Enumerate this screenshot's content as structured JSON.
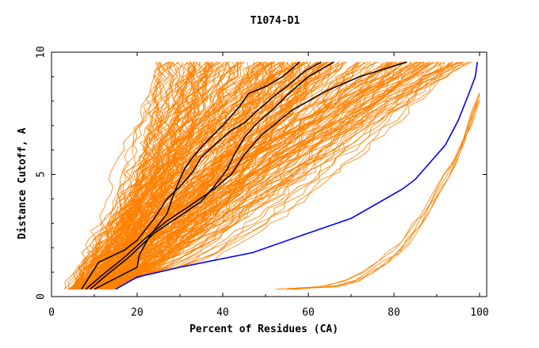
{
  "chart_data": {
    "type": "line",
    "title": "T1074-D1",
    "xlabel": "Percent of Residues (CA)",
    "ylabel": "Distance Cutoff, A",
    "xlim": [
      0,
      100
    ],
    "ylim": [
      0,
      10
    ],
    "xticks": [
      0,
      20,
      40,
      60,
      80,
      100
    ],
    "yticks": [
      0,
      5,
      10
    ],
    "grid": false,
    "legend": "none",
    "colors": {
      "orange": "#ff8000",
      "blue": "#0000ff",
      "black": "#000000"
    },
    "highlight_series": {
      "blue": [
        [
          15,
          0.3
        ],
        [
          20,
          0.8
        ],
        [
          30,
          1.2
        ],
        [
          47,
          1.8
        ],
        [
          60,
          2.6
        ],
        [
          70,
          3.2
        ],
        [
          77,
          3.9
        ],
        [
          82,
          4.4
        ],
        [
          85,
          4.8
        ],
        [
          88,
          5.4
        ],
        [
          92,
          6.2
        ],
        [
          95,
          7.2
        ],
        [
          97.5,
          8.3
        ],
        [
          99,
          9.0
        ],
        [
          99.5,
          9.6
        ]
      ],
      "black": [
        [
          [
            8,
            0.3
          ],
          [
            12,
            0.9
          ],
          [
            17,
            1.6
          ],
          [
            22,
            2.4
          ],
          [
            27,
            3.1
          ],
          [
            33,
            3.8
          ],
          [
            38,
            4.4
          ],
          [
            42,
            5.0
          ],
          [
            45,
            5.8
          ],
          [
            49,
            6.6
          ],
          [
            56,
            7.6
          ],
          [
            64,
            8.4
          ],
          [
            72,
            9.0
          ],
          [
            83,
            9.6
          ]
        ],
        [
          [
            7,
            0.3
          ],
          [
            11,
            1.4
          ],
          [
            17,
            1.9
          ],
          [
            20,
            2.3
          ],
          [
            24,
            3.2
          ],
          [
            27,
            4.0
          ],
          [
            30,
            4.5
          ],
          [
            33,
            5.1
          ],
          [
            35,
            5.7
          ],
          [
            38,
            6.2
          ],
          [
            42,
            6.8
          ],
          [
            45,
            7.1
          ],
          [
            48,
            7.6
          ],
          [
            52,
            8.2
          ],
          [
            55,
            8.6
          ],
          [
            59,
            9.2
          ],
          [
            63,
            9.6
          ]
        ],
        [
          [
            10,
            0.3
          ],
          [
            20,
            1.2
          ],
          [
            20.5,
            1.7
          ],
          [
            23,
            2.5
          ],
          [
            27,
            3.4
          ],
          [
            29,
            4.4
          ],
          [
            31,
            5.2
          ],
          [
            33,
            5.7
          ],
          [
            36,
            6.3
          ],
          [
            40,
            7.0
          ],
          [
            44,
            7.8
          ],
          [
            46,
            8.3
          ],
          [
            50,
            8.6
          ],
          [
            54,
            9.0
          ],
          [
            58,
            9.6
          ]
        ],
        [
          [
            9,
            0.3
          ],
          [
            13,
            0.9
          ],
          [
            18,
            1.6
          ],
          [
            24,
            2.6
          ],
          [
            30,
            3.3
          ],
          [
            35,
            3.9
          ],
          [
            38,
            4.5
          ],
          [
            41,
            5.2
          ],
          [
            43,
            5.9
          ],
          [
            45,
            6.5
          ],
          [
            48,
            7.1
          ],
          [
            52,
            7.7
          ],
          [
            56,
            8.4
          ],
          [
            60,
            9.0
          ],
          [
            66,
            9.6
          ]
        ]
      ]
    },
    "lower_cluster": {
      "start": [
        50,
        0.3
      ],
      "end": [
        100,
        8.2
      ],
      "curve_count": 6
    },
    "orange_curve_count": 250
  }
}
